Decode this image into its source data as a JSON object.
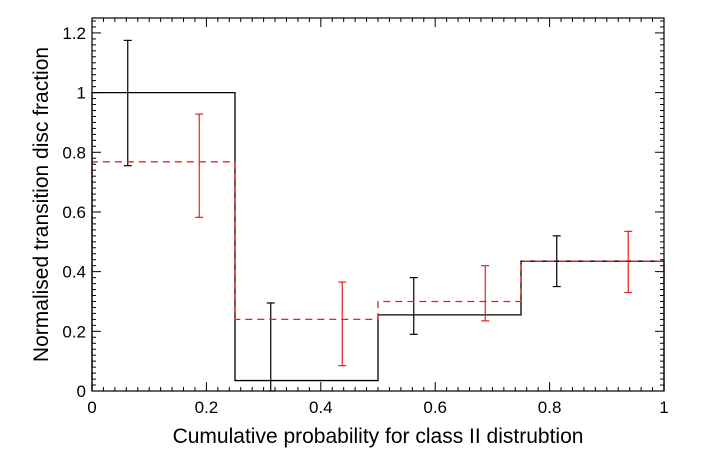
{
  "chart_data": {
    "type": "histogram",
    "title": "",
    "xlabel": "Cumulative probability for class II distrubtion",
    "ylabel": "Normalised transition disc fraction",
    "xlim": [
      0,
      1
    ],
    "ylim": [
      0,
      1.25
    ],
    "xticks": [
      0,
      0.2,
      0.4,
      0.6,
      0.8,
      1
    ],
    "xtick_labels": [
      "0",
      "0.2",
      "0.4",
      "0.6",
      "0.8",
      "1"
    ],
    "yticks": [
      0,
      0.2,
      0.4,
      0.6,
      0.8,
      1,
      1.2
    ],
    "ytick_labels": [
      "0",
      "0.2",
      "0.4",
      "0.6",
      "0.8",
      "1",
      "1.2"
    ],
    "bin_edges": [
      0,
      0.25,
      0.5,
      0.75,
      1.0
    ],
    "series": [
      {
        "name": "black",
        "color": "#000000",
        "style": "solid",
        "values": [
          1.0,
          0.035,
          0.255,
          0.435
        ],
        "errorbars": [
          {
            "x": 0.0625,
            "y": 1.0,
            "low": 0.755,
            "high": 1.175
          },
          {
            "x": 0.3125,
            "y": 0.035,
            "low": 0.0,
            "high": 0.295
          },
          {
            "x": 0.5625,
            "y": 0.255,
            "low": 0.19,
            "high": 0.38
          },
          {
            "x": 0.8125,
            "y": 0.435,
            "low": 0.35,
            "high": 0.52
          }
        ]
      },
      {
        "name": "red",
        "color": "#e8211f",
        "style": "dashed",
        "values": [
          0.768,
          0.24,
          0.3,
          0.435
        ],
        "errorbars": [
          {
            "x": 0.1875,
            "y": 0.768,
            "low": 0.582,
            "high": 0.928
          },
          {
            "x": 0.4375,
            "y": 0.24,
            "low": 0.085,
            "high": 0.365
          },
          {
            "x": 0.6875,
            "y": 0.3,
            "low": 0.235,
            "high": 0.42
          },
          {
            "x": 0.9375,
            "y": 0.435,
            "low": 0.33,
            "high": 0.535
          }
        ]
      }
    ]
  }
}
